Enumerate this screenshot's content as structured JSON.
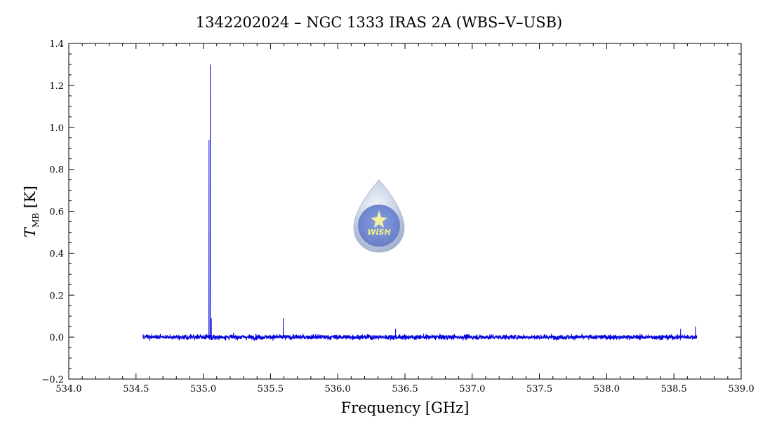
{
  "chart_data": {
    "type": "line",
    "title": "1342202024 – NGC 1333 IRAS 2A (WBS–V–USB)",
    "xlabel": "Frequency [GHz]",
    "ylabel_main": "T",
    "ylabel_sub": "MB",
    "ylabel_unit": "[K]",
    "xlim": [
      534.0,
      539.0
    ],
    "ylim": [
      -0.2,
      1.4
    ],
    "xticks": [
      534.0,
      534.5,
      535.0,
      535.5,
      536.0,
      536.5,
      537.0,
      537.5,
      538.0,
      538.5,
      539.0
    ],
    "xtick_labels": [
      "534.0",
      "534.5",
      "535.0",
      "535.5",
      "536.0",
      "536.5",
      "537.0",
      "537.5",
      "538.0",
      "538.5",
      "539.0"
    ],
    "yticks": [
      -0.2,
      0.0,
      0.2,
      0.4,
      0.6,
      0.8,
      1.0,
      1.2,
      1.4
    ],
    "ytick_labels": [
      "−0.2",
      "0.0",
      "0.2",
      "0.4",
      "0.6",
      "0.8",
      "1.0",
      "1.2",
      "1.4"
    ],
    "grid": false,
    "line_color": "#0000dd",
    "series": [
      {
        "x_range": [
          534.55,
          538.67
        ],
        "baseline": 0.0,
        "noise_rms": 0.012,
        "peaks": [
          {
            "x": 535.043,
            "y": 0.94
          },
          {
            "x": 535.052,
            "y": 1.3
          },
          {
            "x": 535.06,
            "y": 0.09
          },
          {
            "x": 535.595,
            "y": 0.09
          },
          {
            "x": 536.43,
            "y": 0.04
          },
          {
            "x": 538.55,
            "y": 0.04
          },
          {
            "x": 538.66,
            "y": 0.05
          }
        ]
      }
    ]
  },
  "logo": {
    "text": "WISH"
  }
}
